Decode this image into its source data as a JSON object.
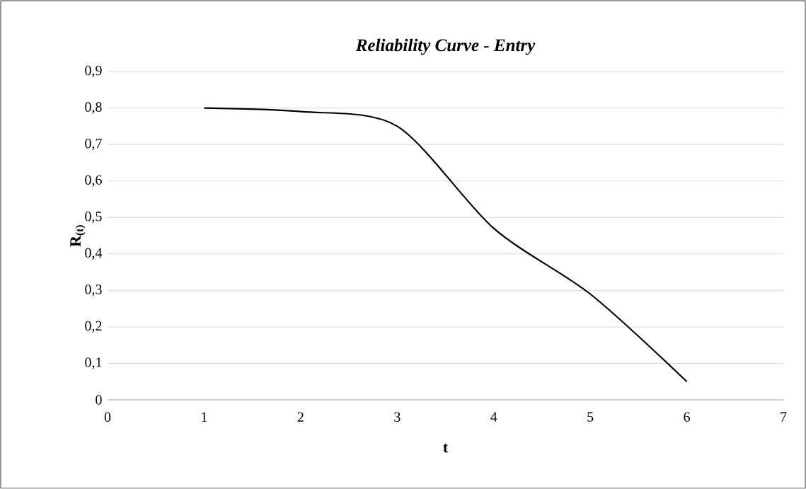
{
  "chart_data": {
    "type": "line",
    "title": "Reliability Curve - Entry",
    "xlabel": "t",
    "ylabel": "R$_{(t)}$",
    "x": [
      1,
      2,
      3,
      4,
      5,
      6
    ],
    "series": [
      {
        "color": "#000000",
        "values": [
          0.8,
          0.79,
          0.75,
          0.47,
          0.29,
          0.05
        ]
      }
    ],
    "xlim": [
      0,
      7
    ],
    "xticks": [
      0,
      1,
      2,
      3,
      4,
      5,
      6,
      7
    ],
    "ylim": [
      0,
      0.9
    ],
    "yticks": [
      {
        "value": 0,
        "label": "0"
      },
      {
        "value": 0.1,
        "label": "0,1"
      },
      {
        "value": 0.2,
        "label": "0,2"
      },
      {
        "value": 0.3,
        "label": "0,3"
      },
      {
        "value": 0.4,
        "label": "0,4"
      },
      {
        "value": 0.5,
        "label": "0,5"
      },
      {
        "value": 0.6,
        "label": "0,6"
      },
      {
        "value": 0.7,
        "label": "0,7"
      },
      {
        "value": 0.8,
        "label": "0,8"
      },
      {
        "value": 0.9,
        "label": "0,9"
      }
    ],
    "grid": "y",
    "marker": "none",
    "line_style": "solid"
  }
}
